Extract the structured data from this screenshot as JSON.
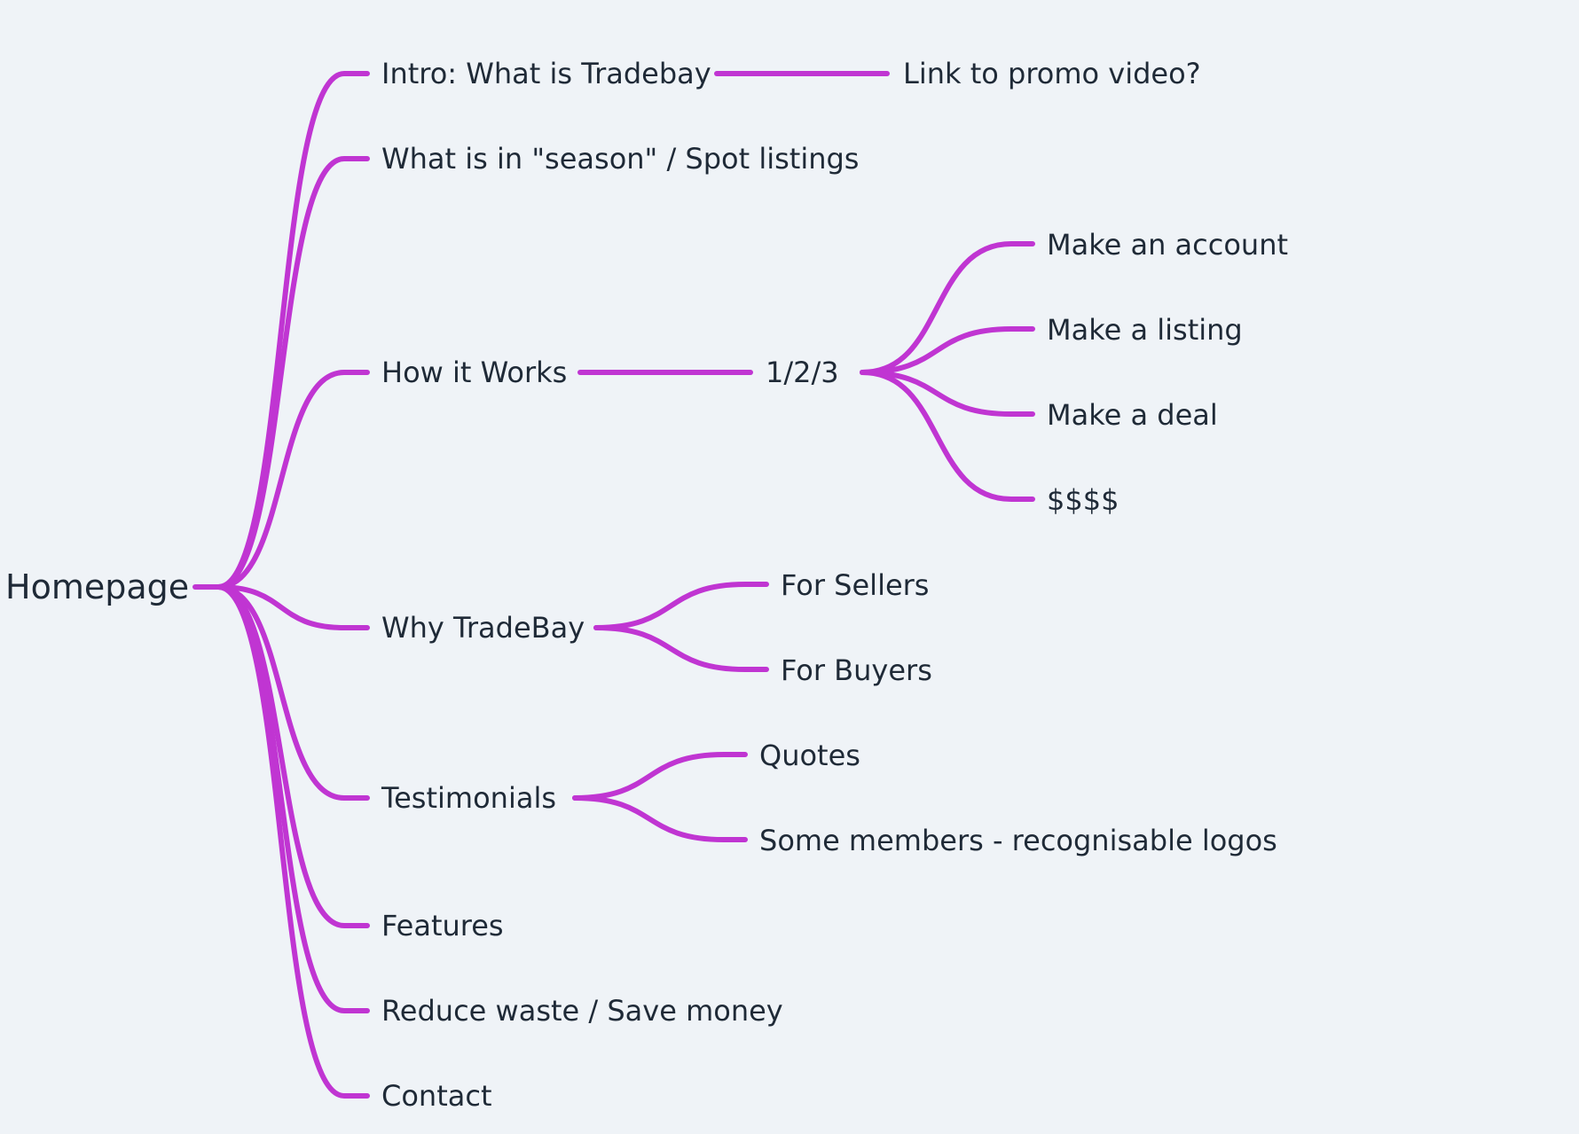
{
  "mindmap": {
    "root": "Homepage",
    "branch_color": "#c035d2",
    "text_color": "#1f2a37",
    "background_color": "#eff3f7",
    "branches": [
      {
        "label": "Intro: What is Tradebay",
        "children": [
          {
            "label": "Link to promo video?"
          }
        ]
      },
      {
        "label": "What is in \"season\" / Spot listings"
      },
      {
        "label": "How it Works",
        "children": [
          {
            "label": "1/2/3",
            "children": [
              {
                "label": "Make an account"
              },
              {
                "label": "Make a listing"
              },
              {
                "label": "Make a deal"
              },
              {
                "label": "$$$$"
              }
            ]
          }
        ]
      },
      {
        "label": "Why TradeBay",
        "children": [
          {
            "label": "For Sellers"
          },
          {
            "label": "For Buyers"
          }
        ]
      },
      {
        "label": "Testimonials",
        "children": [
          {
            "label": "Quotes"
          },
          {
            "label": "Some members - recognisable logos"
          }
        ]
      },
      {
        "label": "Features"
      },
      {
        "label": "Reduce waste / Save money"
      },
      {
        "label": "Contact"
      }
    ]
  }
}
